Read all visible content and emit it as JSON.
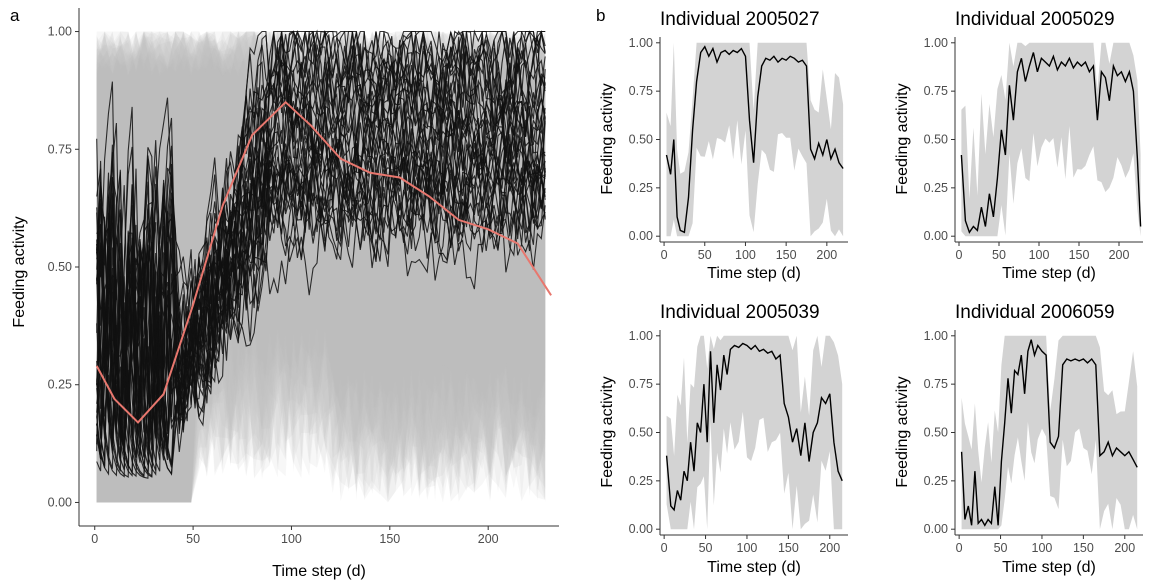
{
  "panel_letters": {
    "a": "a",
    "b": "b"
  },
  "chart_data": [
    {
      "id": "a",
      "type": "line",
      "xlabel": "Time step (d)",
      "ylabel": "Feeding activity",
      "xlim": [
        -8,
        236
      ],
      "ylim": [
        -0.05,
        1.05
      ],
      "xticks": [
        0,
        50,
        100,
        150,
        200
      ],
      "yticks": [
        0.0,
        0.25,
        0.5,
        0.75,
        1.0
      ],
      "ytick_labels": [
        "0.00",
        "0.25",
        "0.50",
        "0.75",
        "1.00"
      ],
      "series": [
        {
          "role": "mean-trend",
          "color": "#e8776e",
          "x": [
            1,
            10,
            22,
            35,
            50,
            65,
            80,
            97,
            110,
            125,
            140,
            155,
            170,
            185,
            200,
            215,
            232
          ],
          "y": [
            0.29,
            0.22,
            0.17,
            0.23,
            0.42,
            0.63,
            0.78,
            0.85,
            0.8,
            0.73,
            0.7,
            0.69,
            0.65,
            0.6,
            0.58,
            0.55,
            0.44
          ]
        }
      ],
      "individual_tracks_color": "#111111",
      "credible_band_color": "#bdbdbd"
    },
    {
      "id": "b1",
      "type": "line",
      "title": "Individual 2005027",
      "xlabel": "Time step (d)",
      "ylabel": "Feeding activity",
      "xlim": [
        -5,
        226
      ],
      "ylim": [
        -0.03,
        1.03
      ],
      "xticks": [
        0,
        50,
        100,
        150,
        200
      ],
      "yticks": [
        0.0,
        0.25,
        0.5,
        0.75,
        1.0
      ],
      "ytick_labels": [
        "0.00",
        "0.25",
        "0.50",
        "0.75",
        "1.00"
      ],
      "series": [
        {
          "x": [
            3,
            8,
            12,
            16,
            20,
            25,
            30,
            35,
            40,
            45,
            50,
            55,
            60,
            65,
            70,
            75,
            80,
            85,
            90,
            95,
            100,
            105,
            110,
            115,
            120,
            125,
            130,
            135,
            140,
            145,
            150,
            155,
            160,
            165,
            170,
            175,
            180,
            185,
            190,
            195,
            200,
            205,
            210,
            215,
            220
          ],
          "y": [
            0.42,
            0.32,
            0.5,
            0.1,
            0.03,
            0.02,
            0.2,
            0.55,
            0.8,
            0.95,
            0.98,
            0.93,
            0.97,
            0.9,
            0.95,
            0.96,
            0.94,
            0.96,
            0.95,
            0.97,
            0.93,
            0.6,
            0.38,
            0.72,
            0.88,
            0.92,
            0.91,
            0.93,
            0.9,
            0.92,
            0.91,
            0.93,
            0.92,
            0.9,
            0.91,
            0.88,
            0.45,
            0.4,
            0.48,
            0.42,
            0.5,
            0.4,
            0.45,
            0.38,
            0.35
          ]
        }
      ]
    },
    {
      "id": "b2",
      "type": "line",
      "title": "Individual 2005029",
      "xlabel": "Time step (d)",
      "ylabel": "Feeding activity",
      "xlim": [
        -5,
        230
      ],
      "ylim": [
        -0.03,
        1.03
      ],
      "xticks": [
        0,
        50,
        100,
        150,
        200
      ],
      "yticks": [
        0.0,
        0.25,
        0.5,
        0.75,
        1.0
      ],
      "ytick_labels": [
        "0.00",
        "0.25",
        "0.50",
        "0.75",
        "1.00"
      ],
      "series": [
        {
          "x": [
            3,
            8,
            13,
            18,
            23,
            28,
            33,
            38,
            43,
            48,
            53,
            58,
            63,
            68,
            73,
            78,
            83,
            88,
            93,
            98,
            103,
            108,
            113,
            118,
            123,
            128,
            133,
            138,
            143,
            148,
            153,
            158,
            163,
            168,
            173,
            178,
            183,
            188,
            193,
            198,
            203,
            208,
            213,
            218,
            223,
            227
          ],
          "y": [
            0.42,
            0.08,
            0.02,
            0.05,
            0.03,
            0.15,
            0.05,
            0.22,
            0.1,
            0.3,
            0.55,
            0.42,
            0.78,
            0.6,
            0.85,
            0.92,
            0.8,
            0.88,
            0.95,
            0.85,
            0.92,
            0.9,
            0.88,
            0.93,
            0.86,
            0.9,
            0.88,
            0.92,
            0.87,
            0.9,
            0.88,
            0.9,
            0.85,
            0.88,
            0.6,
            0.85,
            0.82,
            0.7,
            0.88,
            0.83,
            0.85,
            0.8,
            0.85,
            0.75,
            0.4,
            0.05
          ]
        }
      ]
    },
    {
      "id": "b3",
      "type": "line",
      "title": "Individual 2005039",
      "xlabel": "Time step (d)",
      "ylabel": "Feeding activity",
      "xlim": [
        -5,
        222
      ],
      "ylim": [
        -0.03,
        1.03
      ],
      "xticks": [
        0,
        50,
        100,
        150,
        200
      ],
      "yticks": [
        0.0,
        0.25,
        0.5,
        0.75,
        1.0
      ],
      "ytick_labels": [
        "0.00",
        "0.25",
        "0.50",
        "0.75",
        "1.00"
      ],
      "series": [
        {
          "x": [
            3,
            8,
            12,
            16,
            20,
            24,
            28,
            32,
            36,
            40,
            44,
            48,
            52,
            56,
            60,
            64,
            68,
            72,
            76,
            80,
            85,
            90,
            95,
            100,
            105,
            110,
            115,
            120,
            125,
            130,
            135,
            140,
            145,
            150,
            155,
            160,
            165,
            170,
            175,
            180,
            185,
            190,
            195,
            200,
            205,
            210,
            215
          ],
          "y": [
            0.38,
            0.12,
            0.1,
            0.2,
            0.15,
            0.3,
            0.25,
            0.45,
            0.3,
            0.55,
            0.5,
            0.75,
            0.45,
            0.92,
            0.55,
            0.85,
            0.72,
            0.9,
            0.8,
            0.93,
            0.95,
            0.94,
            0.96,
            0.95,
            0.93,
            0.95,
            0.92,
            0.93,
            0.91,
            0.92,
            0.88,
            0.9,
            0.65,
            0.58,
            0.45,
            0.52,
            0.38,
            0.55,
            0.35,
            0.5,
            0.55,
            0.68,
            0.65,
            0.7,
            0.45,
            0.3,
            0.25
          ]
        }
      ]
    },
    {
      "id": "b4",
      "type": "line",
      "title": "Individual 2006059",
      "xlabel": "Time step (d)",
      "ylabel": "Feeding activity",
      "xlim": [
        -5,
        222
      ],
      "ylim": [
        -0.03,
        1.03
      ],
      "xticks": [
        0,
        50,
        100,
        150,
        200
      ],
      "yticks": [
        0.0,
        0.25,
        0.5,
        0.75,
        1.0
      ],
      "ytick_labels": [
        "0.00",
        "0.25",
        "0.50",
        "0.75",
        "1.00"
      ],
      "series": [
        {
          "x": [
            3,
            7,
            11,
            15,
            19,
            23,
            27,
            31,
            35,
            39,
            43,
            47,
            51,
            55,
            59,
            63,
            67,
            71,
            75,
            79,
            83,
            87,
            91,
            95,
            100,
            105,
            110,
            115,
            120,
            125,
            130,
            135,
            140,
            145,
            150,
            155,
            160,
            165,
            170,
            175,
            180,
            185,
            190,
            195,
            200,
            205,
            210,
            215
          ],
          "y": [
            0.4,
            0.05,
            0.12,
            0.02,
            0.3,
            0.03,
            0.05,
            0.02,
            0.05,
            0.03,
            0.22,
            0.02,
            0.35,
            0.55,
            0.78,
            0.6,
            0.82,
            0.8,
            0.9,
            0.7,
            0.92,
            0.98,
            0.9,
            0.95,
            0.92,
            0.9,
            0.45,
            0.42,
            0.48,
            0.85,
            0.88,
            0.87,
            0.88,
            0.87,
            0.88,
            0.86,
            0.88,
            0.85,
            0.38,
            0.4,
            0.45,
            0.38,
            0.42,
            0.4,
            0.38,
            0.4,
            0.36,
            0.32
          ]
        }
      ]
    }
  ]
}
